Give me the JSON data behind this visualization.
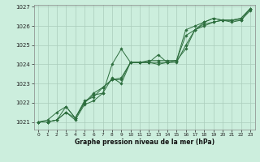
{
  "background_color": "#cceedd",
  "grid_color": "#aaccbb",
  "line_color": "#2d6e3e",
  "xlabel": "Graphe pression niveau de la mer (hPa)",
  "xlim": [
    -0.5,
    23.5
  ],
  "ylim": [
    1020.6,
    1027.1
  ],
  "yticks": [
    1021,
    1022,
    1023,
    1024,
    1025,
    1026,
    1027
  ],
  "xticks": [
    0,
    1,
    2,
    3,
    4,
    5,
    6,
    7,
    8,
    9,
    10,
    11,
    12,
    13,
    14,
    15,
    16,
    17,
    18,
    19,
    20,
    21,
    22,
    23
  ],
  "series": [
    [
      1021.0,
      1021.0,
      1021.1,
      1021.5,
      1021.1,
      1021.9,
      1022.1,
      1022.5,
      1024.0,
      1024.8,
      1024.1,
      1024.1,
      1024.1,
      1024.0,
      1024.1,
      1024.1,
      1025.0,
      1025.8,
      1026.1,
      1026.2,
      1026.3,
      1026.2,
      1026.3,
      1026.9
    ],
    [
      1021.0,
      1021.1,
      1021.5,
      1021.8,
      1021.2,
      1022.0,
      1022.5,
      1022.8,
      1023.2,
      1023.3,
      1024.1,
      1024.1,
      1024.2,
      1024.2,
      1024.2,
      1024.2,
      1024.8,
      1025.8,
      1026.0,
      1026.2,
      1026.3,
      1026.3,
      1026.3,
      1026.8
    ],
    [
      1021.0,
      1021.0,
      1021.1,
      1021.8,
      1021.2,
      1022.1,
      1022.3,
      1022.8,
      1023.2,
      1023.2,
      1024.1,
      1024.1,
      1024.1,
      1024.5,
      1024.1,
      1024.2,
      1025.8,
      1026.0,
      1026.2,
      1026.4,
      1026.3,
      1026.3,
      1026.4,
      1026.9
    ],
    [
      1021.0,
      1021.0,
      1021.1,
      1021.5,
      1021.2,
      1022.0,
      1022.4,
      1022.5,
      1023.3,
      1023.0,
      1024.1,
      1024.1,
      1024.1,
      1024.1,
      1024.1,
      1024.2,
      1025.5,
      1025.8,
      1026.2,
      1026.4,
      1026.3,
      1026.3,
      1026.4,
      1026.9
    ]
  ]
}
